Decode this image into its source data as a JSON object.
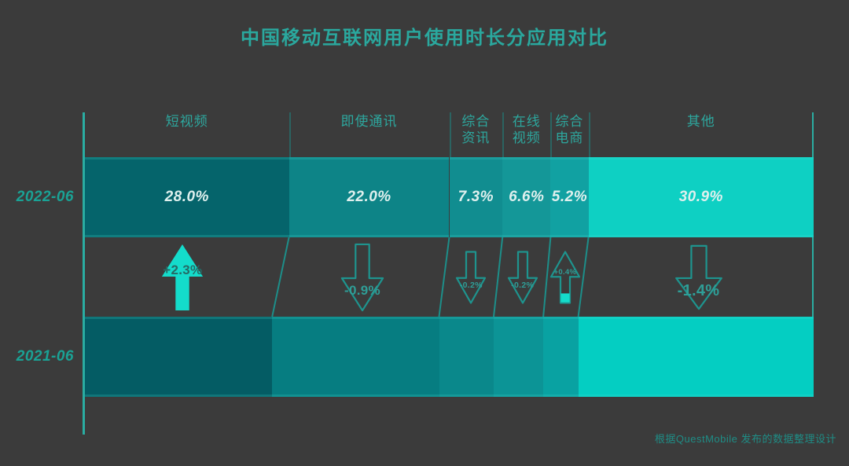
{
  "title": "中国移动互联网用户使用时长分应用对比",
  "footer": {
    "source_note": "根据QuestMobile 发布的数据整理设计"
  },
  "colors": {
    "background": "#3b3b3b",
    "title_text": "#2aa89e",
    "header_text": "#2da79e",
    "row_label_text": "#1aa295",
    "value_label_text": "#dff0ee",
    "axis_line": "#2aada2",
    "header_divider": "#2b6361",
    "connector_line": "#1d8e89",
    "arrow_outline": "#1e948e",
    "arrow_filled": "#14dccb",
    "arrow_label": "#2f9e97",
    "arrow_label_on_fill": "#256b66",
    "source_text": "#1f8d86",
    "segments_2022": [
      "#05646b",
      "#0d8487",
      "#118d90",
      "#149798",
      "#11a1a2",
      "#0ed0c3"
    ],
    "segments_2021": [
      "#045c64",
      "#067d81",
      "#0a888b",
      "#0c9496",
      "#09a2a2",
      "#04cec2"
    ]
  },
  "chart_data": {
    "type": "bar",
    "orientation": "horizontal-stacked-comparison",
    "unit": "%",
    "xlim": [
      0,
      100
    ],
    "categories": [
      "短视频",
      "即使通讯",
      "综合\n资讯",
      "在线\n视频",
      "综合\n电商",
      "其他"
    ],
    "series": [
      {
        "name": "2022-06",
        "values": [
          28.0,
          22.0,
          7.3,
          6.6,
          5.2,
          30.9
        ],
        "labels": [
          "28.0%",
          "22.0%",
          "7.3%",
          "6.6%",
          "5.2%",
          "30.9%"
        ]
      },
      {
        "name": "2021-06",
        "values": [
          25.7,
          22.9,
          7.5,
          6.8,
          4.8,
          32.3
        ],
        "labels": [
          "",
          "",
          "",
          "",
          "",
          ""
        ]
      }
    ],
    "deltas": [
      {
        "category": "短视频",
        "label": "+2.3%",
        "direction": "up",
        "style": "filled",
        "size": "large"
      },
      {
        "category": "即使通讯",
        "label": "-0.9%",
        "direction": "down",
        "style": "outline",
        "size": "large"
      },
      {
        "category": "综合资讯",
        "label": "-0.2%",
        "direction": "down",
        "style": "outline",
        "size": "small"
      },
      {
        "category": "在线视频",
        "label": "-0.2%",
        "direction": "down",
        "style": "outline",
        "size": "small"
      },
      {
        "category": "综合电商",
        "label": "+0.4%",
        "direction": "up",
        "style": "outline-partial-fill",
        "size": "small"
      },
      {
        "category": "其他",
        "label": "-1.4%",
        "direction": "down",
        "style": "outline",
        "size": "medium"
      }
    ]
  }
}
